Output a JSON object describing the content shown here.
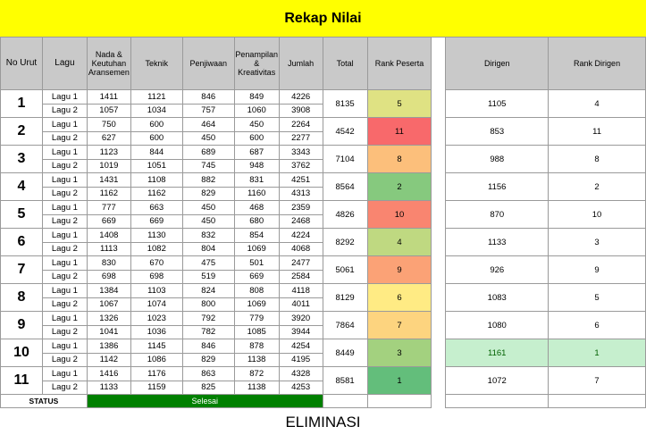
{
  "title": "Rekap Nilai",
  "headers": {
    "no_urut": "No Urut",
    "lagu": "Lagu",
    "nada": "Nada & Keutuhan Aransemen",
    "teknik": "Teknik",
    "penjiwaan": "Penjiwaan",
    "penampilan": "Penampilan & Kreativitas",
    "jumlah": "Jumlah",
    "total": "Total",
    "rank_peserta": "Rank Peserta",
    "dirigen": "Dirigen",
    "rank_dirigen": "Rank Dirigen"
  },
  "rows": [
    {
      "no": "1",
      "total": "8135",
      "rank": "5",
      "dirigen": "1105",
      "rank_dirigen": "4",
      "rank_color": "#dfe283",
      "songs": [
        {
          "lagu": "Lagu 1",
          "nada": "1411",
          "teknik": "1121",
          "penjiwaan": "846",
          "penampilan": "849",
          "jumlah": "4226"
        },
        {
          "lagu": "Lagu 2",
          "nada": "1057",
          "teknik": "1034",
          "penjiwaan": "757",
          "penampilan": "1060",
          "jumlah": "3908"
        }
      ]
    },
    {
      "no": "2",
      "total": "4542",
      "rank": "11",
      "dirigen": "853",
      "rank_dirigen": "11",
      "rank_color": "#f8696b",
      "songs": [
        {
          "lagu": "Lagu 1",
          "nada": "750",
          "teknik": "600",
          "penjiwaan": "464",
          "penampilan": "450",
          "jumlah": "2264"
        },
        {
          "lagu": "Lagu 2",
          "nada": "627",
          "teknik": "600",
          "penjiwaan": "450",
          "penampilan": "600",
          "jumlah": "2277"
        }
      ]
    },
    {
      "no": "3",
      "total": "7104",
      "rank": "8",
      "dirigen": "988",
      "rank_dirigen": "8",
      "rank_color": "#fcbf7b",
      "songs": [
        {
          "lagu": "Lagu 1",
          "nada": "1123",
          "teknik": "844",
          "penjiwaan": "689",
          "penampilan": "687",
          "jumlah": "3343"
        },
        {
          "lagu": "Lagu 2",
          "nada": "1019",
          "teknik": "1051",
          "penjiwaan": "745",
          "penampilan": "948",
          "jumlah": "3762"
        }
      ]
    },
    {
      "no": "4",
      "total": "8564",
      "rank": "2",
      "dirigen": "1156",
      "rank_dirigen": "2",
      "rank_color": "#86c97e",
      "songs": [
        {
          "lagu": "Lagu 1",
          "nada": "1431",
          "teknik": "1108",
          "penjiwaan": "882",
          "penampilan": "831",
          "jumlah": "4251"
        },
        {
          "lagu": "Lagu 2",
          "nada": "1162",
          "teknik": "1162",
          "penjiwaan": "829",
          "penampilan": "1160",
          "jumlah": "4313"
        }
      ]
    },
    {
      "no": "5",
      "total": "4826",
      "rank": "10",
      "dirigen": "870",
      "rank_dirigen": "10",
      "rank_color": "#f98570",
      "songs": [
        {
          "lagu": "Lagu 1",
          "nada": "777",
          "teknik": "663",
          "penjiwaan": "450",
          "penampilan": "468",
          "jumlah": "2359"
        },
        {
          "lagu": "Lagu 2",
          "nada": "669",
          "teknik": "669",
          "penjiwaan": "450",
          "penampilan": "680",
          "jumlah": "2468"
        }
      ]
    },
    {
      "no": "6",
      "total": "8292",
      "rank": "4",
      "dirigen": "1133",
      "rank_dirigen": "3",
      "rank_color": "#bfd981",
      "songs": [
        {
          "lagu": "Lagu 1",
          "nada": "1408",
          "teknik": "1130",
          "penjiwaan": "832",
          "penampilan": "854",
          "jumlah": "4224"
        },
        {
          "lagu": "Lagu 2",
          "nada": "1113",
          "teknik": "1082",
          "penjiwaan": "804",
          "penampilan": "1069",
          "jumlah": "4068"
        }
      ]
    },
    {
      "no": "7",
      "total": "5061",
      "rank": "9",
      "dirigen": "926",
      "rank_dirigen": "9",
      "rank_color": "#fba276",
      "songs": [
        {
          "lagu": "Lagu 1",
          "nada": "830",
          "teknik": "670",
          "penjiwaan": "475",
          "penampilan": "501",
          "jumlah": "2477"
        },
        {
          "lagu": "Lagu 2",
          "nada": "698",
          "teknik": "698",
          "penjiwaan": "519",
          "penampilan": "669",
          "jumlah": "2584"
        }
      ]
    },
    {
      "no": "8",
      "total": "8129",
      "rank": "6",
      "dirigen": "1083",
      "rank_dirigen": "5",
      "rank_color": "#ffeb84",
      "songs": [
        {
          "lagu": "Lagu 1",
          "nada": "1384",
          "teknik": "1103",
          "penjiwaan": "824",
          "penampilan": "808",
          "jumlah": "4118"
        },
        {
          "lagu": "Lagu 2",
          "nada": "1067",
          "teknik": "1074",
          "penjiwaan": "800",
          "penampilan": "1069",
          "jumlah": "4011"
        }
      ]
    },
    {
      "no": "9",
      "total": "7864",
      "rank": "7",
      "dirigen": "1080",
      "rank_dirigen": "6",
      "rank_color": "#fdd47f",
      "songs": [
        {
          "lagu": "Lagu 1",
          "nada": "1326",
          "teknik": "1023",
          "penjiwaan": "792",
          "penampilan": "779",
          "jumlah": "3920"
        },
        {
          "lagu": "Lagu 2",
          "nada": "1041",
          "teknik": "1036",
          "penjiwaan": "782",
          "penampilan": "1085",
          "jumlah": "3944"
        }
      ]
    },
    {
      "no": "10",
      "total": "8449",
      "rank": "3",
      "dirigen": "1161",
      "rank_dirigen": "1",
      "rank_color": "#a3d17f",
      "highlight_dirigen": true,
      "songs": [
        {
          "lagu": "Lagu 1",
          "nada": "1386",
          "teknik": "1145",
          "penjiwaan": "846",
          "penampilan": "878",
          "jumlah": "4254"
        },
        {
          "lagu": "Lagu 2",
          "nada": "1142",
          "teknik": "1086",
          "penjiwaan": "829",
          "penampilan": "1138",
          "jumlah": "4195"
        }
      ]
    },
    {
      "no": "11",
      "total": "8581",
      "rank": "1",
      "dirigen": "1072",
      "rank_dirigen": "7",
      "rank_color": "#63be7b",
      "songs": [
        {
          "lagu": "Lagu 1",
          "nada": "1416",
          "teknik": "1176",
          "penjiwaan": "863",
          "penampilan": "872",
          "jumlah": "4328"
        },
        {
          "lagu": "Lagu 2",
          "nada": "1133",
          "teknik": "1159",
          "penjiwaan": "825",
          "penampilan": "1138",
          "jumlah": "4253"
        }
      ]
    }
  ],
  "status": {
    "label": "STATUS",
    "value": "Selesai",
    "value_color": "#008000"
  },
  "footer": "ELIMINASI",
  "colors": {
    "title_bg": "#ffff00",
    "header_bg": "#c9c9c9",
    "dirigen_highlight_bg": "#c6efce",
    "dirigen_highlight_text": "#006100"
  }
}
